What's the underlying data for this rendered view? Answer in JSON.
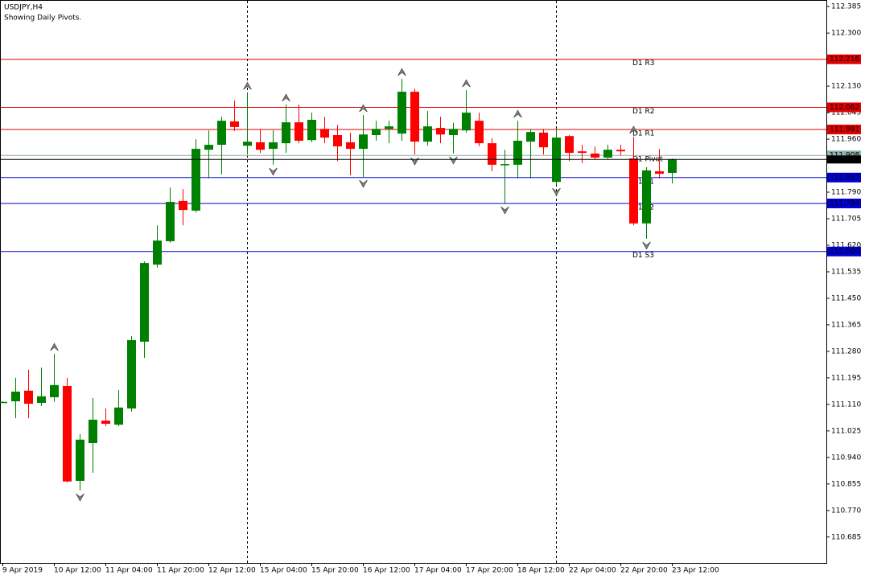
{
  "chart_data": {
    "type": "candlestick",
    "title": "USDJPY,H4",
    "subtitle": "Showing Daily Pivots.",
    "categories": [
      "9 Apr 2019",
      null,
      null,
      null,
      "10 Apr 12:00",
      null,
      null,
      null,
      "11 Apr 04:00",
      null,
      null,
      null,
      "11 Apr 20:00",
      null,
      null,
      null,
      "12 Apr 12:00",
      null,
      null,
      null,
      "15 Apr 04:00",
      null,
      null,
      null,
      "15 Apr 20:00",
      null,
      null,
      null,
      "16 Apr 12:00",
      null,
      null,
      null,
      "17 Apr 04:00",
      null,
      null,
      null,
      "17 Apr 20:00",
      null,
      null,
      null,
      "18 Apr 12:00",
      null,
      null,
      null,
      "22 Apr 04:00",
      null,
      null,
      null,
      "22 Apr 20:00",
      null,
      null,
      null,
      "23 Apr 12:00"
    ],
    "open": [
      111.118,
      111.12,
      111.154,
      111.115,
      111.133,
      111.169,
      110.865,
      110.986,
      111.058,
      111.045,
      111.097,
      111.311,
      111.558,
      111.633,
      111.762,
      111.731,
      111.926,
      111.942,
      112.017,
      111.939,
      111.95,
      111.929,
      111.947,
      112.014,
      111.957,
      111.993,
      111.973,
      111.95,
      111.929,
      111.973,
      111.993,
      111.978,
      112.112,
      111.952,
      111.996,
      111.973,
      111.988,
      112.019,
      111.947,
      111.88,
      111.878,
      111.952,
      111.981,
      111.823,
      111.97,
      111.921,
      111.914,
      111.901,
      111.926,
      111.898,
      111.69,
      111.857,
      111.852
    ],
    "high": [
      111.12,
      111.195,
      111.221,
      111.228,
      111.272,
      111.195,
      111.015,
      111.131,
      111.097,
      111.156,
      111.329,
      111.568,
      111.684,
      111.805,
      111.8,
      111.96,
      111.988,
      112.032,
      112.084,
      112.109,
      111.993,
      111.988,
      112.071,
      112.071,
      112.045,
      112.032,
      112.006,
      111.981,
      112.037,
      112.019,
      112.019,
      112.153,
      112.122,
      112.05,
      112.032,
      112.012,
      112.117,
      112.045,
      111.963,
      111.926,
      112.019,
      111.993,
      111.993,
      111.993,
      111.973,
      111.942,
      111.937,
      111.942,
      111.942,
      111.968,
      111.87,
      111.929,
      111.898
    ],
    "low": [
      111.116,
      111.066,
      111.066,
      111.105,
      111.118,
      110.86,
      110.834,
      110.891,
      111.04,
      111.04,
      111.087,
      111.259,
      111.548,
      111.628,
      111.684,
      111.725,
      111.834,
      111.847,
      111.986,
      111.911,
      111.916,
      111.878,
      111.916,
      111.947,
      111.95,
      111.947,
      111.89,
      111.844,
      111.839,
      111.955,
      111.947,
      111.955,
      111.911,
      111.939,
      111.947,
      111.914,
      111.981,
      111.937,
      111.857,
      111.754,
      111.834,
      111.834,
      111.911,
      111.813,
      111.89,
      111.883,
      111.896,
      111.896,
      111.908,
      111.684,
      111.641,
      111.834,
      111.818
    ],
    "close": [
      111.118,
      111.151,
      111.112,
      111.136,
      111.172,
      110.863,
      110.997,
      111.061,
      111.048,
      111.1,
      111.316,
      111.563,
      111.635,
      111.759,
      111.733,
      111.929,
      111.942,
      112.019,
      111.999,
      111.952,
      111.926,
      111.95,
      112.014,
      111.955,
      112.022,
      111.965,
      111.937,
      111.929,
      111.975,
      111.993,
      112.001,
      112.112,
      111.952,
      112.001,
      111.975,
      111.993,
      112.045,
      111.947,
      111.878,
      111.88,
      111.955,
      111.983,
      111.934,
      111.965,
      111.916,
      111.916,
      111.901,
      111.926,
      111.921,
      111.69,
      111.86,
      111.849,
      111.895
    ],
    "up_color": "#008000",
    "down_color": "#ff0000",
    "fractals": {
      "up": [
        4,
        19,
        22,
        28,
        31,
        36,
        40,
        49
      ],
      "down": [
        6,
        21,
        28,
        32,
        35,
        39,
        43,
        50
      ]
    },
    "period_separators": [
      19,
      43
    ],
    "levels": [
      {
        "name": "D1 R3",
        "value": 112.216,
        "color": "#e00000"
      },
      {
        "name": "D1 R2",
        "value": 112.062,
        "color": "#e00000"
      },
      {
        "name": "D1 R1",
        "value": 111.991,
        "color": "#e00000"
      },
      {
        "name": "D1 Pivot",
        "value": 111.908,
        "color": "#8fb0ac"
      },
      {
        "name": "D1 S1",
        "value": 111.837,
        "color": "#0000d0"
      },
      {
        "name": "D1 S2",
        "value": 111.754,
        "color": "#0000d0"
      },
      {
        "name": "D1 S3",
        "value": {
          "value": 111.6,
          "label": "111.600"
        },
        "color": "#0000d0"
      }
    ],
    "current_price": 111.895,
    "ylim": [
      110.602,
      112.406
    ],
    "yticks": [
      {
        "value": 112.385,
        "label": "112.385"
      },
      {
        "value": 112.3,
        "label": "112.300"
      },
      {
        "value": 112.13,
        "label": "112.130"
      },
      {
        "value": 112.045,
        "label": "112.045"
      },
      {
        "value": 111.96,
        "label": "111.960"
      },
      {
        "value": 111.79,
        "label": "111.790"
      },
      {
        "value": 111.705,
        "label": "111.705"
      },
      {
        "value": 111.62,
        "label": "111.620"
      },
      {
        "value": 111.535,
        "label": "111.535"
      },
      {
        "value": 111.45,
        "label": "111.450"
      },
      {
        "value": 111.365,
        "label": "111.365"
      },
      {
        "value": 111.28,
        "label": "111.280"
      },
      {
        "value": 111.195,
        "label": "111.195"
      },
      {
        "value": 111.11,
        "label": "111.110"
      },
      {
        "value": 111.025,
        "label": "111.025"
      },
      {
        "value": 110.94,
        "label": "110.940"
      },
      {
        "value": 110.855,
        "label": "110.855"
      },
      {
        "value": 110.77,
        "label": "110.770"
      },
      {
        "value": 110.685,
        "label": "110.685"
      }
    ]
  }
}
